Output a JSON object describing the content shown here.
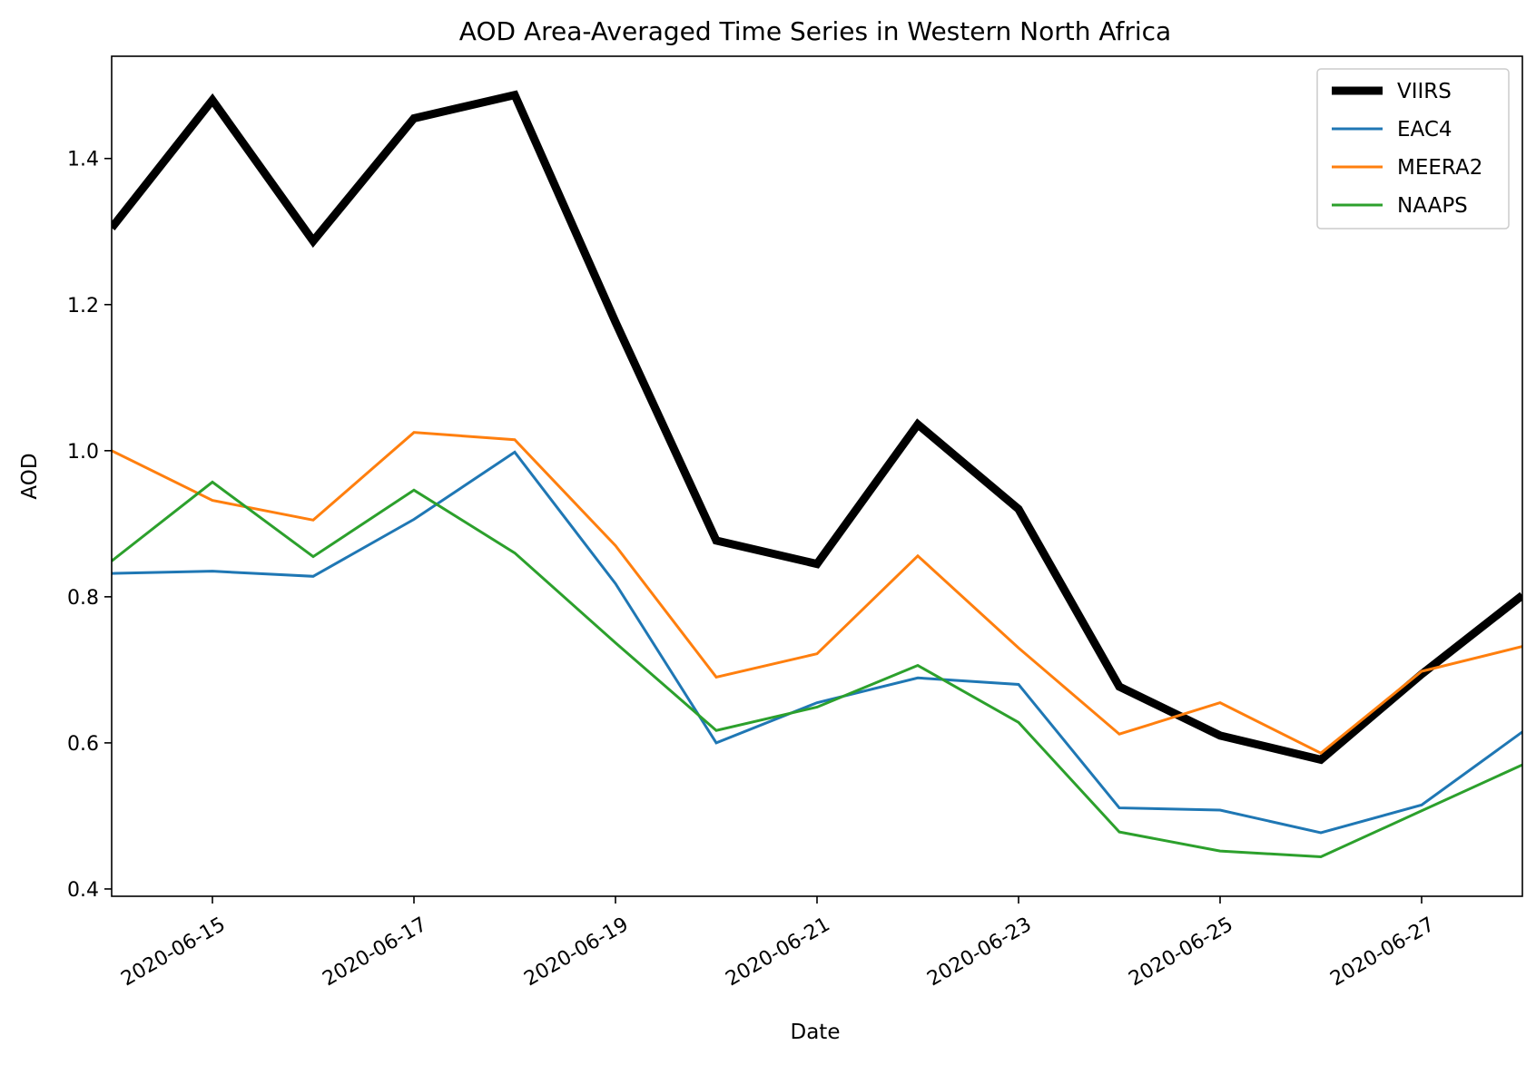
{
  "chart_data": {
    "type": "line",
    "title": "AOD Area-Averaged Time Series in Western North Africa",
    "xlabel": "Date",
    "ylabel": "AOD",
    "x": [
      "2020-06-14",
      "2020-06-15",
      "2020-06-16",
      "2020-06-17",
      "2020-06-18",
      "2020-06-19",
      "2020-06-20",
      "2020-06-21",
      "2020-06-22",
      "2020-06-23",
      "2020-06-24",
      "2020-06-25",
      "2020-06-26",
      "2020-06-27",
      "2020-06-28"
    ],
    "xlim": [
      0,
      14
    ],
    "ylim": [
      0.39,
      1.54
    ],
    "x_ticks": [
      {
        "pos": 1,
        "label": "2020-06-15"
      },
      {
        "pos": 3,
        "label": "2020-06-17"
      },
      {
        "pos": 5,
        "label": "2020-06-19"
      },
      {
        "pos": 7,
        "label": "2020-06-21"
      },
      {
        "pos": 9,
        "label": "2020-06-23"
      },
      {
        "pos": 11,
        "label": "2020-06-25"
      },
      {
        "pos": 13,
        "label": "2020-06-27"
      }
    ],
    "y_ticks": [
      "0.4",
      "0.6",
      "0.8",
      "1.0",
      "1.2",
      "1.4"
    ],
    "grid": false,
    "legend_position": "top-right",
    "series": [
      {
        "name": "VIIRS",
        "color": "#000000",
        "emphasis": "thick",
        "values": [
          1.305,
          1.48,
          1.287,
          1.455,
          1.487,
          1.176,
          0.877,
          0.845,
          1.036,
          0.92,
          0.677,
          0.61,
          0.577,
          0.694,
          0.802
        ]
      },
      {
        "name": "EAC4",
        "color": "#1f77b4",
        "emphasis": "normal",
        "values": [
          0.832,
          0.835,
          0.828,
          0.906,
          0.998,
          0.818,
          0.6,
          0.655,
          0.689,
          0.68,
          0.511,
          0.508,
          0.477,
          0.515,
          0.615
        ]
      },
      {
        "name": "MEERA2",
        "color": "#ff7f0e",
        "emphasis": "normal",
        "values": [
          1.0,
          0.932,
          0.905,
          1.025,
          1.015,
          0.87,
          0.69,
          0.722,
          0.856,
          0.73,
          0.612,
          0.655,
          0.586,
          0.698,
          0.732
        ]
      },
      {
        "name": "NAAPS",
        "color": "#2ca02c",
        "emphasis": "normal",
        "values": [
          0.849,
          0.957,
          0.855,
          0.946,
          0.86,
          0.737,
          0.617,
          0.649,
          0.706,
          0.628,
          0.478,
          0.452,
          0.444,
          0.507,
          0.57
        ]
      }
    ]
  }
}
